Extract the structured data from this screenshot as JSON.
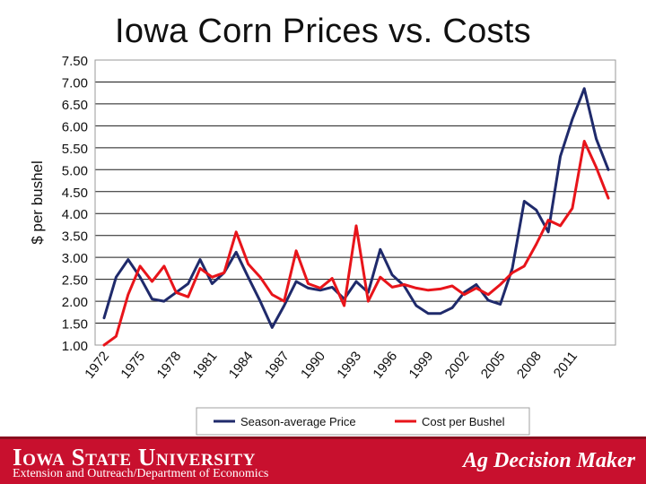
{
  "title": "Iowa Corn Prices vs. Costs",
  "footer": {
    "university": "Iowa State University",
    "unit": "Extension and Outreach/Department of Economics",
    "product": "Ag Decision Maker"
  },
  "colors": {
    "price": "#1f2a6b",
    "cost": "#e8141a",
    "footer": "#c8102e"
  },
  "chart_data": {
    "type": "line",
    "ylabel": "$ per bushel",
    "ylim": [
      1.0,
      7.5
    ],
    "yticks": [
      "1.00",
      "1.50",
      "2.00",
      "2.50",
      "3.00",
      "3.50",
      "4.00",
      "4.50",
      "5.00",
      "5.50",
      "6.00",
      "6.50",
      "7.00",
      "7.50"
    ],
    "xticks": [
      "1972",
      "1975",
      "1978",
      "1981",
      "1984",
      "1987",
      "1990",
      "1993",
      "1996",
      "1999",
      "2002",
      "2005",
      "2008",
      "2011"
    ],
    "x": [
      1972,
      1973,
      1974,
      1975,
      1976,
      1977,
      1978,
      1979,
      1980,
      1981,
      1982,
      1983,
      1984,
      1985,
      1986,
      1987,
      1988,
      1989,
      1990,
      1991,
      1992,
      1993,
      1994,
      1995,
      1996,
      1997,
      1998,
      1999,
      2000,
      2001,
      2002,
      2003,
      2004,
      2005,
      2006,
      2007,
      2008,
      2009,
      2010,
      2011,
      2012,
      2013,
      2014
    ],
    "series": [
      {
        "name": "Season-average Price",
        "color": "#1f2a6b",
        "values": [
          1.62,
          2.55,
          2.95,
          2.55,
          2.05,
          2.0,
          2.2,
          2.4,
          2.95,
          2.4,
          2.65,
          3.12,
          2.55,
          2.0,
          1.4,
          1.9,
          2.45,
          2.3,
          2.25,
          2.32,
          2.05,
          2.45,
          2.2,
          3.18,
          2.6,
          2.35,
          1.9,
          1.72,
          1.72,
          1.85,
          2.2,
          2.38,
          2.02,
          1.93,
          2.75,
          4.28,
          4.08,
          3.58,
          5.3,
          6.15,
          6.85,
          5.7,
          5.0
        ]
      },
      {
        "name": "Cost per Bushel",
        "color": "#e8141a",
        "values": [
          1.0,
          1.2,
          2.15,
          2.8,
          2.45,
          2.8,
          2.2,
          2.1,
          2.75,
          2.55,
          2.65,
          3.58,
          2.85,
          2.55,
          2.15,
          2.0,
          3.15,
          2.4,
          2.3,
          2.52,
          1.9,
          3.72,
          2.0,
          2.55,
          2.32,
          2.38,
          2.3,
          2.25,
          2.28,
          2.35,
          2.15,
          2.3,
          2.15,
          2.38,
          2.65,
          2.8,
          3.3,
          3.85,
          3.72,
          4.12,
          5.65,
          5.05,
          4.35
        ]
      }
    ],
    "grid": true,
    "legend": "bottom"
  }
}
